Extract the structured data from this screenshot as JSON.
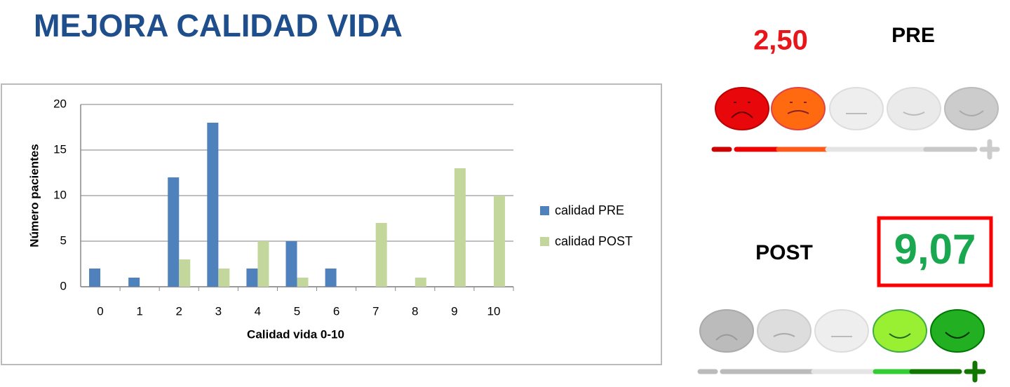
{
  "title": "MEJORA CALIDAD VIDA",
  "pre": {
    "score": "2,50",
    "label": "PRE"
  },
  "post": {
    "label": "POST",
    "score": "9,07"
  },
  "chart_data": {
    "type": "bar",
    "x_label": "Calidad vida 0-10",
    "y_label": "Número pacientes",
    "categories": [
      "0",
      "1",
      "2",
      "3",
      "4",
      "5",
      "6",
      "7",
      "8",
      "9",
      "10"
    ],
    "series": [
      {
        "name": "calidad PRE",
        "color": "#4f81bd",
        "values": [
          2,
          1,
          12,
          18,
          2,
          5,
          2,
          0,
          0,
          0,
          0
        ]
      },
      {
        "name": "calidad POST",
        "color": "#c3d69b",
        "values": [
          0,
          0,
          3,
          2,
          5,
          1,
          0,
          7,
          1,
          13,
          10
        ]
      }
    ],
    "ylim": [
      0,
      20
    ],
    "yticks": [
      0,
      5,
      10,
      15,
      20
    ],
    "grid": true,
    "legend": "right"
  }
}
